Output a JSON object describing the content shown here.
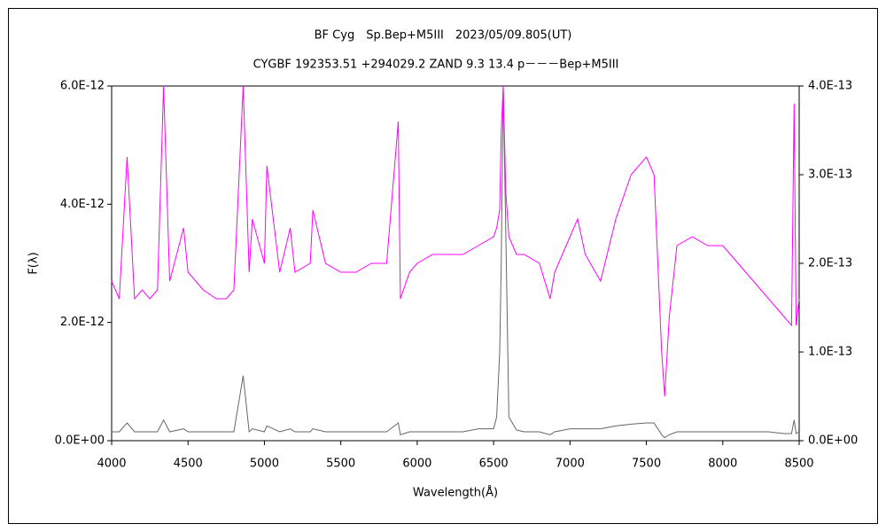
{
  "chart_data": {
    "type": "line",
    "title": "BF Cyg　Sp.Bep+M5III　2023/05/09.805(UT)",
    "subtitle": "CYGBF 192353.51 +294029.2 ZAND 9.3 13.4 p－－－Bep+M5III",
    "xlabel": "Wavelength(Å)",
    "ylabel": "F(λ)",
    "x": [
      4000,
      4050,
      4101,
      4150,
      4200,
      4250,
      4300,
      4340,
      4380,
      4471,
      4500,
      4600,
      4686,
      4750,
      4800,
      4861,
      4900,
      4921,
      5000,
      5016,
      5100,
      5169,
      5200,
      5300,
      5317,
      5400,
      5500,
      5600,
      5700,
      5800,
      5876,
      5890,
      5950,
      6000,
      6100,
      6200,
      6300,
      6400,
      6500,
      6520,
      6540,
      6550,
      6563,
      6580,
      6600,
      6650,
      6700,
      6800,
      6870,
      6900,
      7000,
      7050,
      7100,
      7200,
      7300,
      7400,
      7500,
      7550,
      7600,
      7620,
      7650,
      7700,
      7800,
      7900,
      8000,
      8100,
      8200,
      8300,
      8400,
      8450,
      8467,
      8480,
      8500
    ],
    "series": [
      {
        "color": "#666666",
        "axis": "y",
        "values": [
          1.5e-13,
          1.5e-13,
          3e-13,
          1.5e-13,
          1.5e-13,
          1.5e-13,
          1.5e-13,
          3.5e-13,
          1.5e-13,
          2e-13,
          1.5e-13,
          1.5e-13,
          1.5e-13,
          1.5e-13,
          1.5e-13,
          1.1e-12,
          1.5e-13,
          2e-13,
          1.5e-13,
          2.5e-13,
          1.5e-13,
          2e-13,
          1.5e-13,
          1.5e-13,
          2e-13,
          1.5e-13,
          1.5e-13,
          1.5e-13,
          1.5e-13,
          1.5e-13,
          3e-13,
          1e-13,
          1.5e-13,
          1.5e-13,
          1.5e-13,
          1.5e-13,
          1.5e-13,
          2e-13,
          2e-13,
          4e-13,
          1.5e-12,
          3e-12,
          6e-12,
          3.5e-12,
          4e-13,
          1.8e-13,
          1.5e-13,
          1.5e-13,
          1e-13,
          1.5e-13,
          2e-13,
          2e-13,
          2e-13,
          2e-13,
          2.5e-13,
          2.8e-13,
          3e-13,
          3e-13,
          1e-13,
          5e-14,
          1e-13,
          1.5e-13,
          1.5e-13,
          1.5e-13,
          1.5e-13,
          1.5e-13,
          1.5e-13,
          1.5e-13,
          1.2e-13,
          1.2e-13,
          3.5e-13,
          1.2e-13,
          1.5e-13
        ]
      },
      {
        "color": "#ff00ff",
        "axis": "y2",
        "values": [
          1.8e-13,
          1.6e-13,
          3.2e-13,
          1.6e-13,
          1.7e-13,
          1.6e-13,
          1.7e-13,
          4e-13,
          1.8e-13,
          2.4e-13,
          1.9e-13,
          1.7e-13,
          1.6e-13,
          1.6e-13,
          1.7e-13,
          4e-13,
          1.9e-13,
          2.5e-13,
          2e-13,
          3.1e-13,
          1.9e-13,
          2.4e-13,
          1.9e-13,
          2e-13,
          2.6e-13,
          2e-13,
          1.9e-13,
          1.9e-13,
          2e-13,
          2e-13,
          3.6e-13,
          1.6e-13,
          1.9e-13,
          2e-13,
          2.1e-13,
          2.1e-13,
          2.1e-13,
          2.2e-13,
          2.3e-13,
          2.4e-13,
          2.6e-13,
          3.5e-13,
          4e-13,
          2.8e-13,
          2.3e-13,
          2.1e-13,
          2.1e-13,
          2e-13,
          1.6e-13,
          1.9e-13,
          2.3e-13,
          2.5e-13,
          2.1e-13,
          1.8e-13,
          2.5e-13,
          3e-13,
          3.2e-13,
          3e-13,
          1e-13,
          5e-14,
          1.4e-13,
          2.2e-13,
          2.3e-13,
          2.2e-13,
          2.2e-13,
          2e-13,
          1.8e-13,
          1.6e-13,
          1.4e-13,
          1.3e-13,
          3.8e-13,
          1.3e-13,
          1.6e-13
        ]
      }
    ],
    "xlim": [
      4000,
      8500
    ],
    "xticks": [
      4000,
      4500,
      5000,
      5500,
      6000,
      6500,
      7000,
      7500,
      8000,
      8500
    ],
    "ylim": [
      0,
      6e-12
    ],
    "yticks": [
      {
        "value": 0,
        "label": "0.0E+00"
      },
      {
        "value": 2e-12,
        "label": "2.0E-12"
      },
      {
        "value": 4e-12,
        "label": "4.0E-12"
      },
      {
        "value": 6e-12,
        "label": "6.0E-12"
      }
    ],
    "y2lim": [
      0,
      4e-13
    ],
    "y2ticks": [
      {
        "value": 0,
        "label": "0.0E+00"
      },
      {
        "value": 1e-13,
        "label": "1.0E-13"
      },
      {
        "value": 2e-13,
        "label": "2.0E-13"
      },
      {
        "value": 3e-13,
        "label": "3.0E-13"
      },
      {
        "value": 4e-13,
        "label": "4.0E-13"
      }
    ],
    "y2color": "#ff00ff"
  }
}
